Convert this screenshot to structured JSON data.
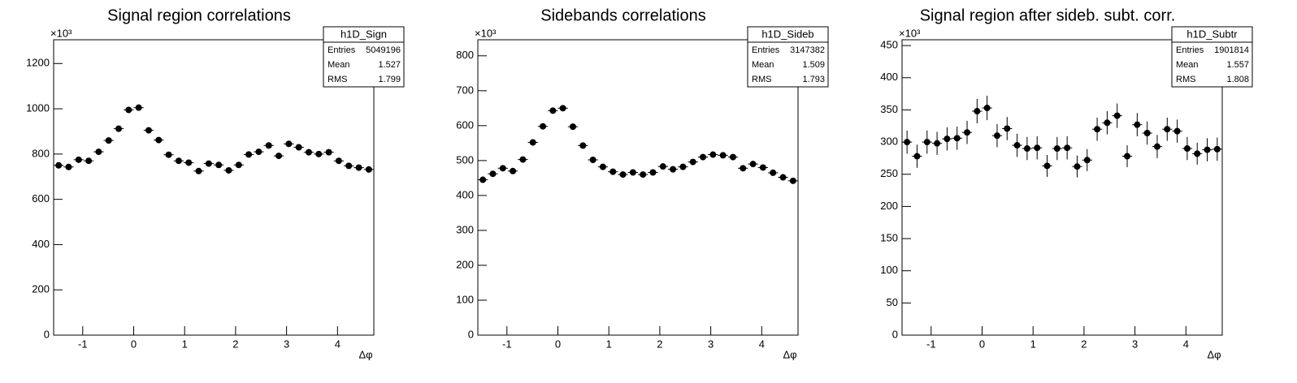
{
  "chart_data": [
    {
      "type": "histogram",
      "title": "Signal region correlations",
      "x_label": "Δφ",
      "y_scale_label": "×10³",
      "color": "#000000",
      "bins": [
        -1.5708,
        -1.3744,
        -1.1781,
        -0.9817,
        -0.7854,
        -0.589,
        -0.3927,
        -0.1963,
        0,
        0.1963,
        0.3927,
        0.589,
        0.7854,
        0.9817,
        1.1781,
        1.3744,
        1.5708,
        1.7671,
        1.9635,
        2.1598,
        2.3562,
        2.5525,
        2.7489,
        2.9452,
        3.1416,
        3.3379,
        3.5343,
        3.7306,
        3.927,
        4.1233,
        4.3197,
        4.516,
        4.7124
      ],
      "values": [
        750,
        743,
        775,
        770,
        810,
        860,
        912,
        995,
        1005,
        905,
        862,
        797,
        770,
        762,
        725,
        758,
        752,
        728,
        752,
        798,
        810,
        838,
        792,
        845,
        830,
        808,
        800,
        808,
        770,
        748,
        740,
        732
      ],
      "xlim": [
        -1.5708,
        4.7124
      ],
      "xticks": [
        -1,
        0,
        1,
        2,
        3,
        4
      ],
      "ylim": [
        0,
        1305
      ],
      "yticks": [
        0,
        200,
        400,
        600,
        800,
        1000,
        1200
      ],
      "stats": {
        "title": "h1D_Sign",
        "rows": [
          [
            "Entries",
            "5049196"
          ],
          [
            "Mean",
            "1.527"
          ],
          [
            "RMS",
            "1.799"
          ]
        ]
      }
    },
    {
      "type": "histogram",
      "title": "Sidebands correlations",
      "x_label": "Δφ",
      "y_scale_label": "×10³",
      "color": "#000000",
      "bins": [
        -1.5708,
        -1.3744,
        -1.1781,
        -0.9817,
        -0.7854,
        -0.589,
        -0.3927,
        -0.1963,
        0,
        0.1963,
        0.3927,
        0.589,
        0.7854,
        0.9817,
        1.1781,
        1.3744,
        1.5708,
        1.7671,
        1.9635,
        2.1598,
        2.3562,
        2.5525,
        2.7489,
        2.9452,
        3.1416,
        3.3379,
        3.5343,
        3.7306,
        3.927,
        4.1233,
        4.3197,
        4.516,
        4.7124
      ],
      "values": [
        445,
        462,
        478,
        470,
        503,
        552,
        598,
        643,
        650,
        597,
        543,
        502,
        482,
        468,
        460,
        466,
        460,
        466,
        483,
        475,
        482,
        496,
        510,
        517,
        515,
        510,
        478,
        490,
        480,
        465,
        452,
        442
      ],
      "xlim": [
        -1.5708,
        4.7124
      ],
      "xticks": [
        -1,
        0,
        1,
        2,
        3,
        4
      ],
      "ylim": [
        0,
        846
      ],
      "yticks": [
        0,
        100,
        200,
        300,
        400,
        500,
        600,
        700,
        800
      ],
      "stats": {
        "title": "h1D_Sideb",
        "rows": [
          [
            "Entries",
            "3147382"
          ],
          [
            "Mean",
            "1.509"
          ],
          [
            "RMS",
            "1.793"
          ]
        ]
      }
    },
    {
      "type": "histogram",
      "title": "Signal region after sideb. subt. corr.",
      "x_label": "Δφ",
      "y_scale_label": "×10³",
      "color": "#000000",
      "bins": [
        -1.5708,
        -1.3744,
        -1.1781,
        -0.9817,
        -0.7854,
        -0.589,
        -0.3927,
        -0.1963,
        0,
        0.1963,
        0.3927,
        0.589,
        0.7854,
        0.9817,
        1.1781,
        1.3744,
        1.5708,
        1.7671,
        1.9635,
        2.1598,
        2.3562,
        2.5525,
        2.7489,
        2.9452,
        3.1416,
        3.3379,
        3.5343,
        3.7306,
        3.927,
        4.1233,
        4.3197,
        4.516,
        4.7124
      ],
      "values": [
        300,
        278,
        300,
        298,
        305,
        306,
        315,
        348,
        353,
        310,
        321,
        295,
        290,
        291,
        263,
        290,
        291,
        262,
        272,
        320,
        330,
        341,
        278,
        327,
        314,
        293,
        320,
        317,
        290,
        282,
        288,
        289
      ],
      "errors": [
        18,
        18,
        18,
        18,
        18,
        18,
        18,
        19,
        19,
        18,
        18,
        18,
        18,
        18,
        17,
        18,
        18,
        17,
        17,
        18,
        18,
        19,
        17,
        18,
        18,
        18,
        18,
        18,
        18,
        17,
        18,
        18
      ],
      "xlim": [
        -1.5708,
        4.7124
      ],
      "xticks": [
        -1,
        0,
        1,
        2,
        3,
        4
      ],
      "ylim": [
        0,
        459
      ],
      "yticks": [
        0,
        50,
        100,
        150,
        200,
        250,
        300,
        350,
        400,
        450
      ],
      "stats": {
        "title": "h1D_Subtr",
        "rows": [
          [
            "Entries",
            "1901814"
          ],
          [
            "Mean",
            "1.557"
          ],
          [
            "RMS",
            "1.808"
          ]
        ]
      }
    }
  ]
}
